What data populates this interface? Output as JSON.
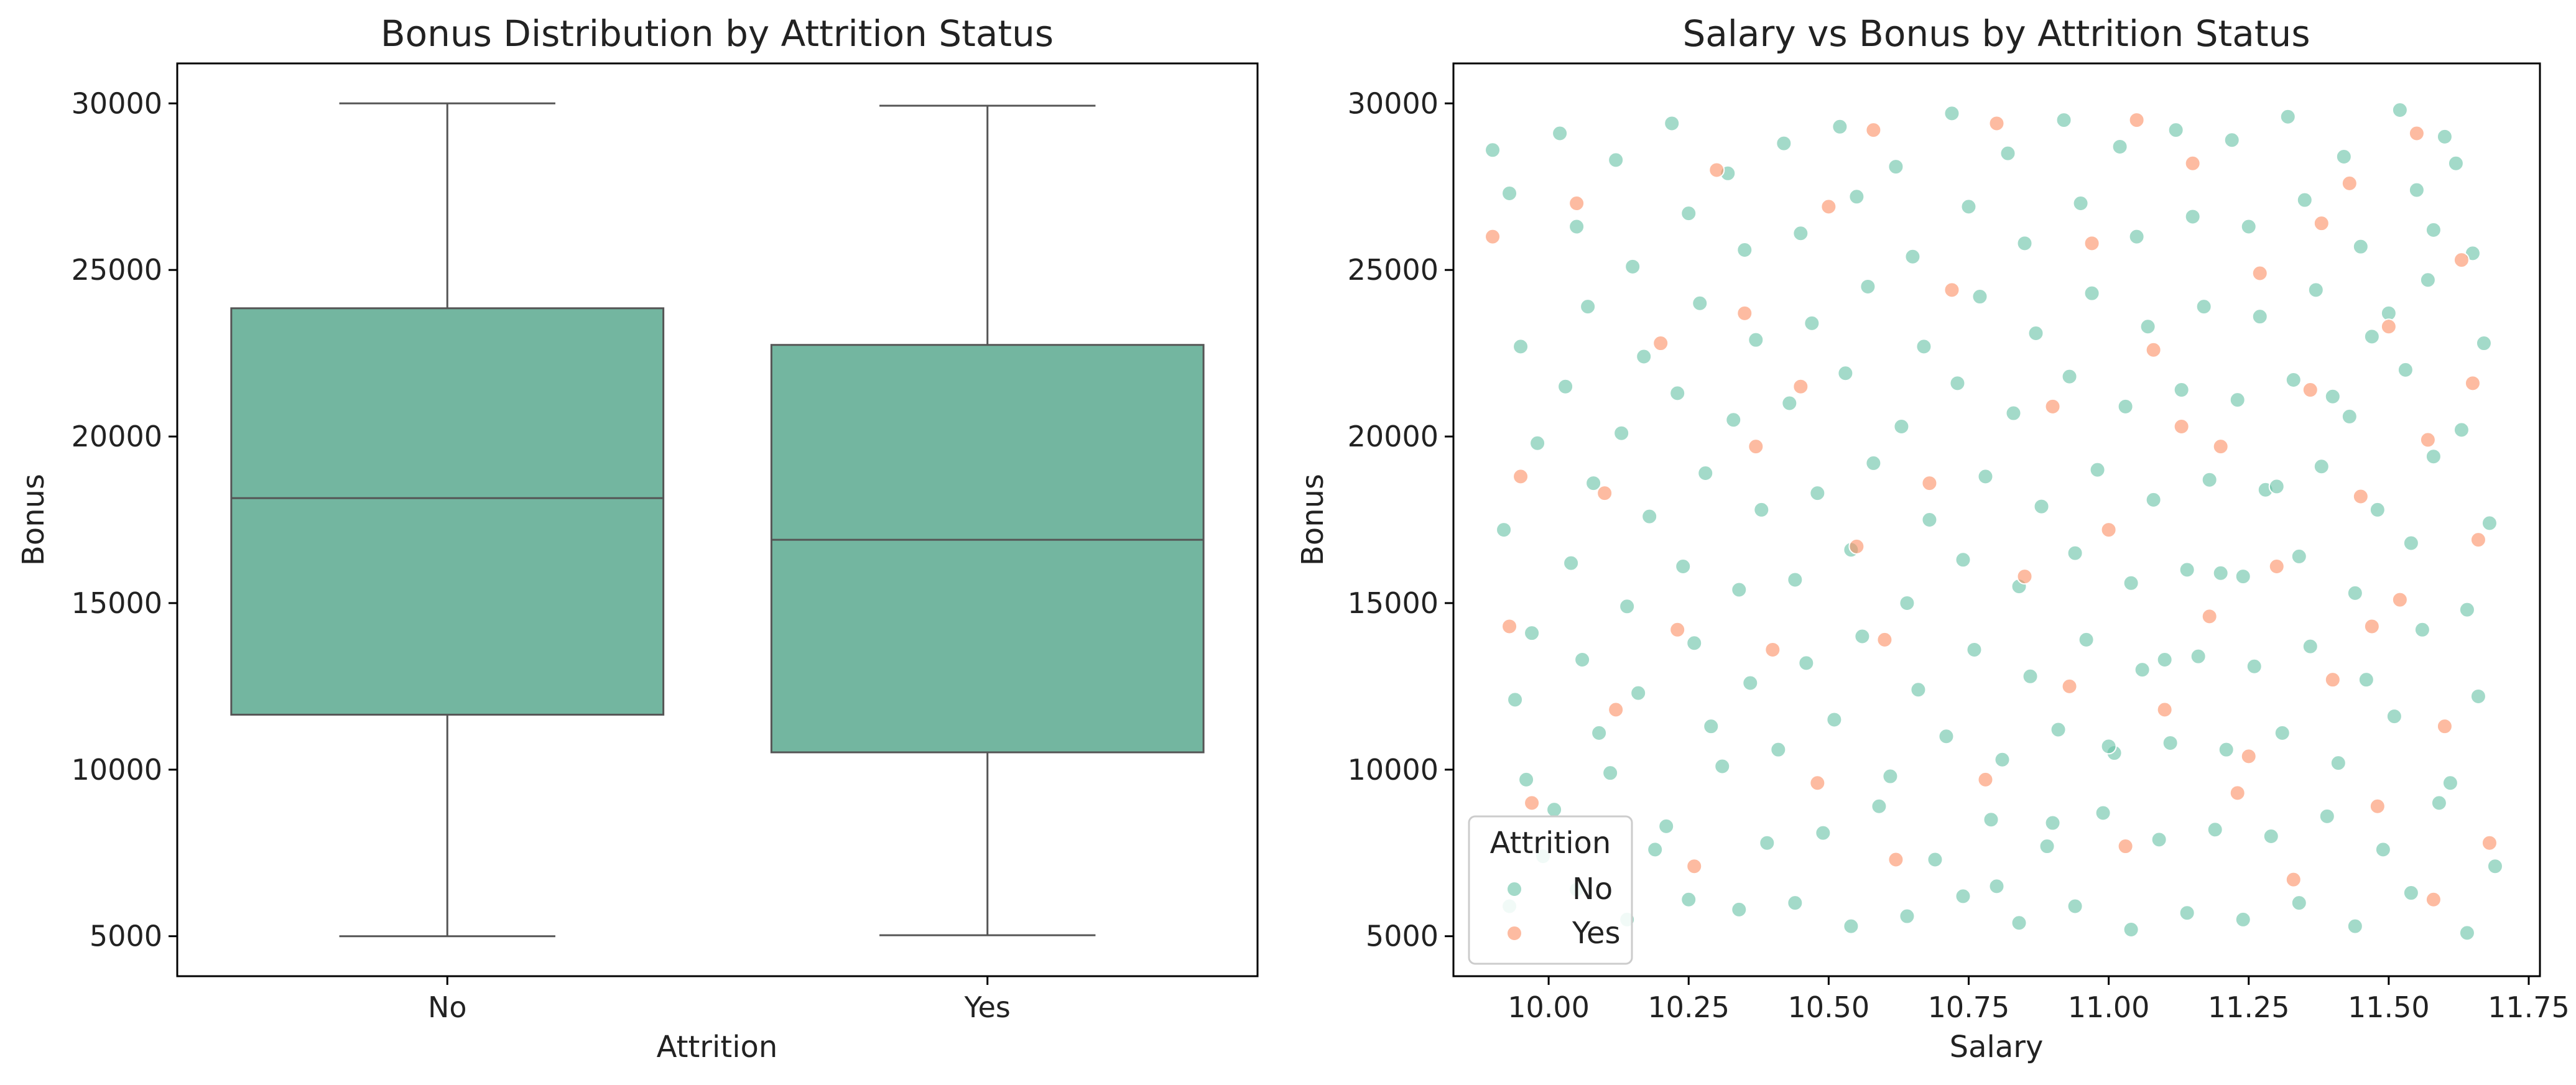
{
  "chart_data": [
    {
      "type": "box",
      "title": "Bonus Distribution by Attrition Status",
      "xlabel": "Attrition",
      "ylabel": "Bonus",
      "categories": [
        "No",
        "Yes"
      ],
      "ylim": [
        3800,
        31200
      ],
      "yticks": [
        5000,
        10000,
        15000,
        20000,
        25000,
        30000
      ],
      "box_color": "#73b6a0",
      "line_color": "#555555",
      "boxes": [
        {
          "category": "No",
          "min": 5000,
          "q1": 11650,
          "median": 18150,
          "q3": 23850,
          "max": 30000
        },
        {
          "category": "Yes",
          "min": 5030,
          "q1": 10520,
          "median": 16900,
          "q3": 22750,
          "max": 29930
        }
      ],
      "grid": false
    },
    {
      "type": "scatter",
      "title": "Salary vs Bonus by Attrition Status",
      "xlabel": "Salary",
      "ylabel": "Bonus",
      "xlim": [
        9.83,
        11.77
      ],
      "ylim": [
        3800,
        31200
      ],
      "xticks": [
        "10.00",
        "10.25",
        "10.50",
        "10.75",
        "11.00",
        "11.25",
        "11.50",
        "11.75"
      ],
      "yticks": [
        5000,
        10000,
        15000,
        20000,
        25000,
        30000
      ],
      "grid": false,
      "legend": {
        "title": "Attrition",
        "placement": "lower-left"
      },
      "series": [
        {
          "name": "No",
          "color": "#66c2a5",
          "points": [
            [
              9.9,
              28600
            ],
            [
              9.93,
              27300
            ],
            [
              9.95,
              22700
            ],
            [
              9.98,
              19800
            ],
            [
              9.92,
              17200
            ],
            [
              9.97,
              14100
            ],
            [
              9.94,
              12100
            ],
            [
              9.96,
              9700
            ],
            [
              9.99,
              7400
            ],
            [
              9.93,
              5900
            ],
            [
              10.02,
              29100
            ],
            [
              10.05,
              26300
            ],
            [
              10.07,
              23900
            ],
            [
              10.03,
              21500
            ],
            [
              10.08,
              18600
            ],
            [
              10.04,
              16200
            ],
            [
              10.06,
              13300
            ],
            [
              10.09,
              11100
            ],
            [
              10.01,
              8800
            ],
            [
              10.05,
              6400
            ],
            [
              10.12,
              28300
            ],
            [
              10.15,
              25100
            ],
            [
              10.17,
              22400
            ],
            [
              10.13,
              20100
            ],
            [
              10.18,
              17600
            ],
            [
              10.14,
              14900
            ],
            [
              10.16,
              12300
            ],
            [
              10.11,
              9900
            ],
            [
              10.19,
              7600
            ],
            [
              10.14,
              5500
            ],
            [
              10.22,
              29400
            ],
            [
              10.25,
              26700
            ],
            [
              10.27,
              24000
            ],
            [
              10.23,
              21300
            ],
            [
              10.28,
              18900
            ],
            [
              10.24,
              16100
            ],
            [
              10.26,
              13800
            ],
            [
              10.29,
              11300
            ],
            [
              10.21,
              8300
            ],
            [
              10.25,
              6100
            ],
            [
              10.32,
              27900
            ],
            [
              10.35,
              25600
            ],
            [
              10.37,
              22900
            ],
            [
              10.33,
              20500
            ],
            [
              10.38,
              17800
            ],
            [
              10.34,
              15400
            ],
            [
              10.36,
              12600
            ],
            [
              10.31,
              10100
            ],
            [
              10.39,
              7800
            ],
            [
              10.34,
              5800
            ],
            [
              10.42,
              28800
            ],
            [
              10.45,
              26100
            ],
            [
              10.47,
              23400
            ],
            [
              10.43,
              21000
            ],
            [
              10.48,
              18300
            ],
            [
              10.44,
              15700
            ],
            [
              10.46,
              13200
            ],
            [
              10.41,
              10600
            ],
            [
              10.49,
              8100
            ],
            [
              10.44,
              6000
            ],
            [
              10.52,
              29300
            ],
            [
              10.55,
              27200
            ],
            [
              10.57,
              24500
            ],
            [
              10.53,
              21900
            ],
            [
              10.58,
              19200
            ],
            [
              10.54,
              16600
            ],
            [
              10.56,
              14000
            ],
            [
              10.51,
              11500
            ],
            [
              10.59,
              8900
            ],
            [
              10.54,
              5300
            ],
            [
              10.62,
              28100
            ],
            [
              10.65,
              25400
            ],
            [
              10.67,
              22700
            ],
            [
              10.63,
              20300
            ],
            [
              10.68,
              17500
            ],
            [
              10.64,
              15000
            ],
            [
              10.66,
              12400
            ],
            [
              10.61,
              9800
            ],
            [
              10.69,
              7300
            ],
            [
              10.64,
              5600
            ],
            [
              10.72,
              29700
            ],
            [
              10.75,
              26900
            ],
            [
              10.77,
              24200
            ],
            [
              10.73,
              21600
            ],
            [
              10.78,
              18800
            ],
            [
              10.74,
              16300
            ],
            [
              10.76,
              13600
            ],
            [
              10.71,
              11000
            ],
            [
              10.79,
              8500
            ],
            [
              10.74,
              6200
            ],
            [
              10.82,
              28500
            ],
            [
              10.85,
              25800
            ],
            [
              10.87,
              23100
            ],
            [
              10.83,
              20700
            ],
            [
              10.88,
              17900
            ],
            [
              10.84,
              15500
            ],
            [
              10.86,
              12800
            ],
            [
              10.81,
              10300
            ],
            [
              10.89,
              7700
            ],
            [
              10.84,
              5400
            ],
            [
              10.92,
              29500
            ],
            [
              10.95,
              27000
            ],
            [
              10.97,
              24300
            ],
            [
              10.93,
              21800
            ],
            [
              10.98,
              19000
            ],
            [
              10.94,
              16500
            ],
            [
              10.96,
              13900
            ],
            [
              10.91,
              11200
            ],
            [
              10.99,
              8700
            ],
            [
              10.94,
              5900
            ],
            [
              11.02,
              28700
            ],
            [
              11.05,
              26000
            ],
            [
              11.07,
              23300
            ],
            [
              11.03,
              20900
            ],
            [
              11.08,
              18100
            ],
            [
              11.04,
              15600
            ],
            [
              11.06,
              13000
            ],
            [
              11.01,
              10500
            ],
            [
              11.09,
              7900
            ],
            [
              11.04,
              5200
            ],
            [
              11.12,
              29200
            ],
            [
              11.15,
              26600
            ],
            [
              11.17,
              23900
            ],
            [
              11.13,
              21400
            ],
            [
              11.18,
              18700
            ],
            [
              11.14,
              16000
            ],
            [
              11.16,
              13400
            ],
            [
              11.11,
              10800
            ],
            [
              11.19,
              8200
            ],
            [
              11.14,
              5700
            ],
            [
              11.22,
              28900
            ],
            [
              11.25,
              26300
            ],
            [
              11.27,
              23600
            ],
            [
              11.23,
              21100
            ],
            [
              11.28,
              18400
            ],
            [
              11.24,
              15800
            ],
            [
              11.26,
              13100
            ],
            [
              11.21,
              10600
            ],
            [
              11.29,
              8000
            ],
            [
              11.24,
              5500
            ],
            [
              11.32,
              29600
            ],
            [
              11.35,
              27100
            ],
            [
              11.37,
              24400
            ],
            [
              11.33,
              21700
            ],
            [
              11.38,
              19100
            ],
            [
              11.34,
              16400
            ],
            [
              11.36,
              13700
            ],
            [
              11.31,
              11100
            ],
            [
              11.39,
              8600
            ],
            [
              11.34,
              6000
            ],
            [
              11.42,
              28400
            ],
            [
              11.45,
              25700
            ],
            [
              11.47,
              23000
            ],
            [
              11.43,
              20600
            ],
            [
              11.48,
              17800
            ],
            [
              11.44,
              15300
            ],
            [
              11.46,
              12700
            ],
            [
              11.41,
              10200
            ],
            [
              11.49,
              7600
            ],
            [
              11.44,
              5300
            ],
            [
              11.52,
              29800
            ],
            [
              11.55,
              27400
            ],
            [
              11.57,
              24700
            ],
            [
              11.53,
              22000
            ],
            [
              11.58,
              19400
            ],
            [
              11.54,
              16800
            ],
            [
              11.56,
              14200
            ],
            [
              11.51,
              11600
            ],
            [
              11.59,
              9000
            ],
            [
              11.54,
              6300
            ],
            [
              11.62,
              28200
            ],
            [
              11.65,
              25500
            ],
            [
              11.67,
              22800
            ],
            [
              11.63,
              20200
            ],
            [
              11.68,
              17400
            ],
            [
              11.64,
              14800
            ],
            [
              11.66,
              12200
            ],
            [
              11.61,
              9600
            ],
            [
              11.69,
              7100
            ],
            [
              11.64,
              5100
            ],
            [
              11.6,
              29000
            ],
            [
              11.58,
              26200
            ],
            [
              11.5,
              23700
            ],
            [
              11.4,
              21200
            ],
            [
              11.3,
              18500
            ],
            [
              11.2,
              15900
            ],
            [
              11.1,
              13300
            ],
            [
              11.0,
              10700
            ],
            [
              10.9,
              8400
            ],
            [
              10.8,
              6500
            ]
          ]
        },
        {
          "name": "Yes",
          "color": "#fc8d62",
          "points": [
            [
              9.9,
              26000
            ],
            [
              9.95,
              18800
            ],
            [
              9.93,
              14300
            ],
            [
              9.97,
              9000
            ],
            [
              10.05,
              27000
            ],
            [
              10.1,
              18300
            ],
            [
              10.12,
              11800
            ],
            [
              10.2,
              22800
            ],
            [
              10.23,
              14200
            ],
            [
              10.26,
              7100
            ],
            [
              10.3,
              28000
            ],
            [
              10.35,
              23700
            ],
            [
              10.37,
              19700
            ],
            [
              10.4,
              13600
            ],
            [
              10.45,
              21500
            ],
            [
              10.48,
              9600
            ],
            [
              10.5,
              26900
            ],
            [
              10.55,
              16700
            ],
            [
              10.58,
              29200
            ],
            [
              10.6,
              13900
            ],
            [
              10.62,
              7300
            ],
            [
              10.68,
              18600
            ],
            [
              10.72,
              24400
            ],
            [
              10.78,
              9700
            ],
            [
              10.8,
              29400
            ],
            [
              10.85,
              15800
            ],
            [
              10.9,
              20900
            ],
            [
              10.93,
              12500
            ],
            [
              10.97,
              25800
            ],
            [
              11.0,
              17200
            ],
            [
              11.03,
              7700
            ],
            [
              11.08,
              22600
            ],
            [
              11.1,
              11800
            ],
            [
              11.15,
              28200
            ],
            [
              11.18,
              14600
            ],
            [
              11.2,
              19700
            ],
            [
              11.23,
              9300
            ],
            [
              11.27,
              24900
            ],
            [
              11.3,
              16100
            ],
            [
              11.33,
              6700
            ],
            [
              11.36,
              21400
            ],
            [
              11.4,
              12700
            ],
            [
              11.43,
              27600
            ],
            [
              11.45,
              18200
            ],
            [
              11.48,
              8900
            ],
            [
              11.5,
              23300
            ],
            [
              11.52,
              15100
            ],
            [
              11.55,
              29100
            ],
            [
              11.57,
              19900
            ],
            [
              11.6,
              11300
            ],
            [
              11.63,
              25300
            ],
            [
              11.66,
              16900
            ],
            [
              11.68,
              7800
            ],
            [
              11.65,
              21600
            ],
            [
              11.58,
              6100
            ],
            [
              11.47,
              14300
            ],
            [
              11.38,
              26400
            ],
            [
              11.25,
              10400
            ],
            [
              11.13,
              20300
            ],
            [
              11.05,
              29500
            ]
          ]
        }
      ]
    }
  ]
}
